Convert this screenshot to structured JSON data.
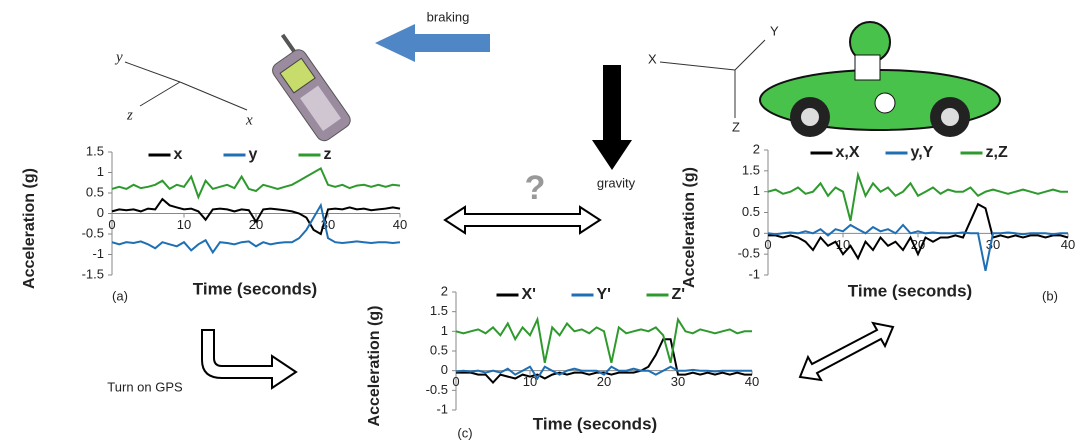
{
  "diagram": {
    "braking": "braking",
    "gravity": "gravity",
    "question": "?",
    "turn_on_gps": "Turn on GPS",
    "phone_axes": [
      "y",
      "z",
      "x"
    ],
    "car_axes": [
      "X",
      "Y",
      "Z"
    ]
  },
  "chart_data": [
    {
      "type": "line",
      "panel": "(a)",
      "x_label": "Time (seconds)",
      "y_label": "Acceleration (g)",
      "x": [
        0,
        1,
        2,
        3,
        4,
        5,
        6,
        7,
        8,
        9,
        10,
        11,
        12,
        13,
        14,
        15,
        16,
        17,
        18,
        19,
        20,
        21,
        22,
        23,
        24,
        25,
        26,
        27,
        28,
        29,
        30,
        31,
        32,
        33,
        34,
        35,
        36,
        37,
        38,
        39,
        40
      ],
      "xlim": [
        0,
        40
      ],
      "xticks": [
        0,
        10,
        20,
        30,
        40
      ],
      "ylim": [
        -1.5,
        1.5
      ],
      "yticks": [
        -1.5,
        -1,
        -0.5,
        0,
        0.5,
        1,
        1.5
      ],
      "series": [
        {
          "name": "x",
          "color": "#000000",
          "values": [
            0.05,
            0.1,
            0.08,
            0.1,
            0.05,
            0.12,
            0.1,
            0.35,
            0.2,
            0.15,
            0.1,
            0.12,
            0.05,
            -0.15,
            0.1,
            0.12,
            0.1,
            0.05,
            0.1,
            0.08,
            -0.2,
            0.1,
            0.12,
            0.1,
            0.08,
            0.05,
            0.0,
            -0.1,
            -0.4,
            -0.5,
            0.1,
            0.12,
            0.1,
            0.15,
            0.1,
            0.12,
            0.08,
            0.1,
            0.12,
            0.15,
            0.12
          ]
        },
        {
          "name": "y",
          "color": "#1f6fb4",
          "values": [
            -0.7,
            -0.75,
            -0.7,
            -0.72,
            -0.68,
            -0.75,
            -0.85,
            -0.7,
            -0.75,
            -0.8,
            -0.7,
            -0.9,
            -0.75,
            -0.65,
            -0.95,
            -0.7,
            -0.72,
            -0.75,
            -0.7,
            -0.68,
            -0.8,
            -0.7,
            -0.75,
            -0.72,
            -0.7,
            -0.7,
            -0.6,
            -0.4,
            -0.1,
            0.2,
            -0.6,
            -0.7,
            -0.72,
            -0.7,
            -0.68,
            -0.7,
            -0.72,
            -0.7,
            -0.7,
            -0.72,
            -0.7
          ]
        },
        {
          "name": "z",
          "color": "#2e9a2e",
          "values": [
            0.6,
            0.65,
            0.6,
            0.7,
            0.62,
            0.65,
            0.7,
            0.8,
            0.6,
            0.7,
            0.65,
            0.9,
            0.4,
            0.8,
            0.6,
            0.65,
            0.7,
            0.62,
            0.9,
            0.6,
            0.55,
            0.7,
            0.65,
            0.6,
            0.65,
            0.7,
            0.8,
            0.9,
            1.0,
            1.1,
            0.7,
            0.65,
            0.7,
            0.62,
            0.68,
            0.7,
            0.65,
            0.7,
            0.65,
            0.7,
            0.68
          ]
        }
      ]
    },
    {
      "type": "line",
      "panel": "(b)",
      "x_label": "Time (seconds)",
      "y_label": "Acceleration (g)",
      "x": [
        0,
        1,
        2,
        3,
        4,
        5,
        6,
        7,
        8,
        9,
        10,
        11,
        12,
        13,
        14,
        15,
        16,
        17,
        18,
        19,
        20,
        21,
        22,
        23,
        24,
        25,
        26,
        27,
        28,
        29,
        30,
        31,
        32,
        33,
        34,
        35,
        36,
        37,
        38,
        39,
        40
      ],
      "xlim": [
        0,
        40
      ],
      "xticks": [
        0,
        10,
        20,
        30,
        40
      ],
      "ylim": [
        -1,
        2
      ],
      "yticks": [
        -1,
        -0.5,
        0,
        0.5,
        1,
        1.5,
        2
      ],
      "series": [
        {
          "name": "x,X",
          "color": "#000000",
          "values": [
            -0.05,
            -0.05,
            -0.1,
            -0.05,
            -0.1,
            -0.2,
            -0.4,
            -0.1,
            -0.3,
            -0.2,
            -0.5,
            -0.3,
            -0.6,
            -0.2,
            -0.4,
            -0.1,
            -0.3,
            -0.2,
            -0.4,
            -0.1,
            -0.5,
            -0.1,
            -0.2,
            -0.1,
            -0.1,
            -0.05,
            -0.1,
            0.3,
            0.7,
            0.6,
            -0.1,
            -0.05,
            -0.1,
            -0.05,
            -0.1,
            -0.05,
            -0.05,
            -0.1,
            -0.05,
            -0.05,
            -0.1
          ]
        },
        {
          "name": "y,Y",
          "color": "#1f6fb4",
          "values": [
            0,
            -0.02,
            0,
            0.02,
            0,
            0.05,
            0,
            0.1,
            -0.05,
            0.1,
            0.05,
            0.2,
            0.1,
            0,
            0.15,
            0.05,
            0.1,
            0,
            0.2,
            0,
            0.05,
            0,
            0.02,
            0,
            0,
            0,
            0.02,
            0,
            0,
            -0.9,
            0,
            0,
            0.02,
            0,
            -0.02,
            0,
            0,
            0,
            -0.02,
            0,
            0
          ]
        },
        {
          "name": "z,Z",
          "color": "#2e9a2e",
          "values": [
            1,
            1.05,
            0.95,
            1,
            1.1,
            0.95,
            1,
            1.2,
            0.9,
            1.1,
            1.0,
            0.3,
            1.4,
            0.9,
            1.2,
            1.0,
            1.1,
            0.9,
            1.0,
            1.2,
            0.9,
            1.0,
            1.1,
            0.95,
            1.05,
            1.0,
            1.0,
            1.1,
            0.9,
            1.0,
            1.05,
            1.0,
            0.95,
            1.0,
            1.05,
            1.0,
            0.95,
            1.0,
            1.05,
            1.0,
            1.0
          ]
        }
      ]
    },
    {
      "type": "line",
      "panel": "(c)",
      "x_label": "Time (seconds)",
      "y_label": "Acceleration (g)",
      "x": [
        0,
        1,
        2,
        3,
        4,
        5,
        6,
        7,
        8,
        9,
        10,
        11,
        12,
        13,
        14,
        15,
        16,
        17,
        18,
        19,
        20,
        21,
        22,
        23,
        24,
        25,
        26,
        27,
        28,
        29,
        30,
        31,
        32,
        33,
        34,
        35,
        36,
        37,
        38,
        39,
        40
      ],
      "xlim": [
        0,
        40
      ],
      "xticks": [
        0,
        10,
        20,
        30,
        40
      ],
      "ylim": [
        -1,
        2
      ],
      "yticks": [
        -1,
        -0.5,
        0,
        0.5,
        1,
        1.5,
        2
      ],
      "series": [
        {
          "name": "X'",
          "color": "#000000",
          "values": [
            -0.05,
            -0.05,
            -0.05,
            -0.1,
            -0.1,
            -0.3,
            -0.1,
            -0.15,
            -0.2,
            -0.1,
            -0.15,
            -0.1,
            -0.2,
            -0.1,
            -0.05,
            -0.1,
            -0.05,
            -0.05,
            -0.1,
            -0.05,
            -0.05,
            -0.1,
            -0.05,
            -0.05,
            -0.05,
            0,
            0.1,
            0.4,
            0.8,
            0.8,
            -0.1,
            -0.1,
            -0.05,
            -0.1,
            -0.05,
            -0.1,
            -0.05,
            -0.1,
            -0.05,
            -0.1,
            -0.1
          ]
        },
        {
          "name": "Y'",
          "color": "#1f6fb4",
          "values": [
            -0.02,
            0,
            -0.02,
            0,
            -0.05,
            0,
            -0.05,
            0.05,
            -0.1,
            0,
            0.1,
            -0.2,
            0.1,
            0,
            -0.1,
            0,
            0.05,
            0,
            0,
            0,
            -0.1,
            0.1,
            0,
            0,
            0.05,
            0,
            0,
            -0.1,
            0,
            0.1,
            0,
            0,
            0.02,
            0,
            0,
            -0.02,
            0,
            0,
            0,
            0,
            0
          ]
        },
        {
          "name": "Z'",
          "color": "#2e9a2e",
          "values": [
            1,
            0.95,
            1.0,
            1.05,
            0.95,
            1.1,
            0.9,
            1.2,
            0.8,
            1.1,
            0.9,
            1.3,
            0.2,
            1.1,
            0.9,
            1.2,
            1.0,
            1.05,
            0.95,
            1.1,
            1.0,
            0.2,
            1.1,
            0.95,
            1.0,
            1.05,
            1.0,
            1.1,
            0.9,
            0.2,
            1.3,
            1.0,
            0.95,
            1.05,
            1.0,
            0.95,
            1.0,
            1.05,
            0.95,
            1.0,
            1.0
          ]
        }
      ]
    }
  ]
}
